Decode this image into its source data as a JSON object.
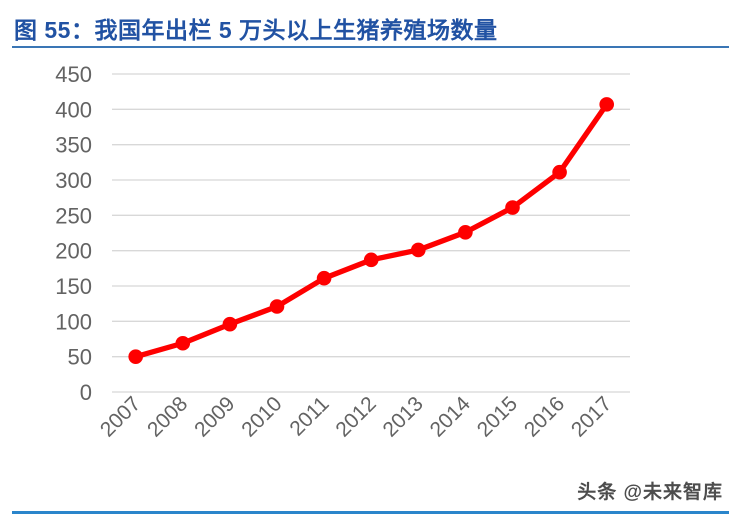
{
  "figure": {
    "title": "图 55：我国年出栏 5 万头以上生猪养殖场数量",
    "watermark": "头条 @未来智库"
  },
  "colors": {
    "title_text": "#2152A3",
    "title_rule": "#3A76B5",
    "bottom_rule": "#2A85CB",
    "series_line": "#FE0000",
    "gridline": "#D8D8D8",
    "axis_text": "#636363",
    "watermark_text": "#4D4D4D"
  },
  "chart_data": {
    "type": "line",
    "title": "我国年出栏5万头以上生猪养殖场数量",
    "categories": [
      "2007",
      "2008",
      "2009",
      "2010",
      "2011",
      "2012",
      "2013",
      "2014",
      "2015",
      "2016",
      "2017"
    ],
    "values": [
      50,
      69,
      96,
      121,
      161,
      187,
      201,
      226,
      261,
      311,
      407
    ],
    "xlabel": "",
    "ylabel": "",
    "ylim": [
      0,
      450
    ],
    "yticks": [
      0,
      50,
      100,
      150,
      200,
      250,
      300,
      350,
      400,
      450
    ],
    "grid": true,
    "legend": "none",
    "marker": "circle",
    "x_tick_rotation": 45
  }
}
